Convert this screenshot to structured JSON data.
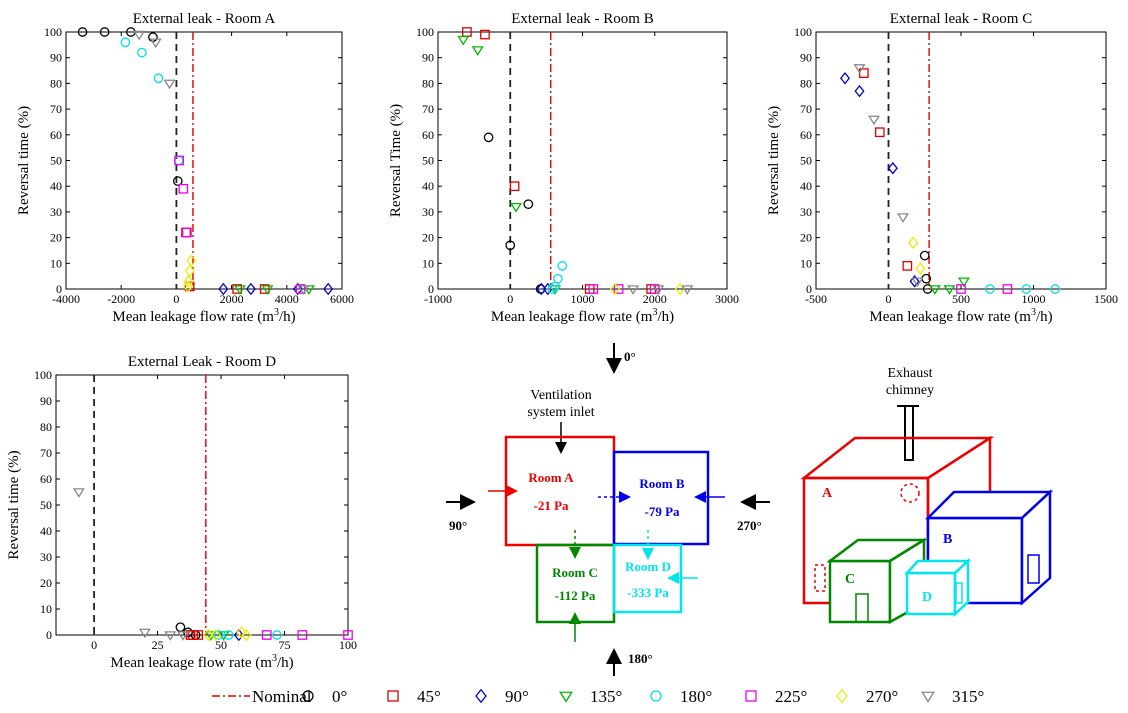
{
  "chart_data": [
    {
      "type": "scatter",
      "title": "External leak - Room A",
      "xlabel": "Mean leakage flow rate (m3/h)",
      "ylabel": "Reversal time (%)",
      "xlim": [
        -4000,
        6000
      ],
      "ylim": [
        0,
        100
      ],
      "xticks": [
        -4000,
        -2000,
        0,
        2000,
        4000,
        6000
      ],
      "yticks": [
        0,
        10,
        20,
        30,
        40,
        50,
        60,
        70,
        80,
        90,
        100
      ],
      "nominal_x": 600,
      "reference_x": 0,
      "series": [
        {
          "name": "0°",
          "points": [
            [
              -3400,
              100
            ],
            [
              -2600,
              100
            ],
            [
              -1650,
              100
            ],
            [
              -850,
              98
            ],
            [
              50,
              42
            ]
          ]
        },
        {
          "name": "45°",
          "points": [
            [
              350,
              22
            ],
            [
              480,
              1
            ],
            [
              2200,
              0
            ],
            [
              3200,
              0
            ]
          ]
        },
        {
          "name": "90°",
          "points": [
            [
              1700,
              0
            ],
            [
              2700,
              0
            ],
            [
              4400,
              0
            ],
            [
              5500,
              0
            ]
          ]
        },
        {
          "name": "135°",
          "points": [
            [
              2300,
              0
            ],
            [
              3300,
              0
            ],
            [
              4800,
              0
            ]
          ]
        },
        {
          "name": "180°",
          "points": [
            [
              -1850,
              96
            ],
            [
              -1250,
              92
            ],
            [
              -650,
              82
            ],
            [
              80,
              50
            ]
          ]
        },
        {
          "name": "225°",
          "points": [
            [
              100,
              50
            ],
            [
              250,
              39
            ],
            [
              380,
              22
            ],
            [
              4500,
              0
            ]
          ]
        },
        {
          "name": "270°",
          "points": [
            [
              540,
              11
            ],
            [
              480,
              7
            ],
            [
              440,
              3
            ],
            [
              420,
              1
            ]
          ]
        },
        {
          "name": "315°",
          "points": [
            [
              -1350,
              99
            ],
            [
              -750,
              96
            ],
            [
              -250,
              80
            ],
            [
              4600,
              0
            ]
          ]
        }
      ]
    },
    {
      "type": "scatter",
      "title": "External leak - Room B",
      "xlabel": "Mean leakage flow rate (m3/h)",
      "ylabel": "Reversal Time (%)",
      "xlim": [
        -1000,
        3000
      ],
      "ylim": [
        0,
        100
      ],
      "xticks": [
        -1000,
        0,
        1000,
        2000,
        3000
      ],
      "yticks": [
        0,
        10,
        20,
        30,
        40,
        50,
        60,
        70,
        80,
        90,
        100
      ],
      "nominal_x": 560,
      "reference_x": 0,
      "series": [
        {
          "name": "0°",
          "points": [
            [
              -300,
              59
            ],
            [
              250,
              33
            ],
            [
              0,
              17
            ],
            [
              420,
              0
            ]
          ]
        },
        {
          "name": "45°",
          "points": [
            [
              -600,
              100
            ],
            [
              -350,
              99
            ],
            [
              60,
              40
            ],
            [
              1100,
              0
            ],
            [
              1950,
              0
            ]
          ]
        },
        {
          "name": "90°",
          "points": [
            [
              430,
              0
            ],
            [
              520,
              0
            ]
          ]
        },
        {
          "name": "135°",
          "points": [
            [
              -650,
              97
            ],
            [
              -450,
              93
            ],
            [
              80,
              32
            ],
            [
              620,
              0
            ]
          ]
        },
        {
          "name": "180°",
          "points": [
            [
              720,
              9
            ],
            [
              660,
              4
            ],
            [
              620,
              1
            ],
            [
              580,
              0
            ]
          ]
        },
        {
          "name": "225°",
          "points": [
            [
              1150,
              0
            ],
            [
              1500,
              0
            ],
            [
              2000,
              0
            ]
          ]
        },
        {
          "name": "270°",
          "points": [
            [
              1450,
              0
            ],
            [
              2350,
              0
            ]
          ]
        },
        {
          "name": "315°",
          "points": [
            [
              1700,
              0
            ],
            [
              2050,
              0
            ],
            [
              2450,
              0
            ]
          ]
        }
      ]
    },
    {
      "type": "scatter",
      "title": "External leak - Room C",
      "xlabel": "Mean leakage flow rate (m3/h)",
      "ylabel": "Reversal time (%)",
      "xlim": [
        -500,
        1500
      ],
      "ylim": [
        0,
        100
      ],
      "xticks": [
        -500,
        0,
        500,
        1000,
        1500
      ],
      "yticks": [
        0,
        10,
        20,
        30,
        40,
        50,
        60,
        70,
        80,
        90,
        100
      ],
      "nominal_x": 280,
      "reference_x": 0,
      "series": [
        {
          "name": "0°",
          "points": [
            [
              250,
              13
            ],
            [
              260,
              4
            ],
            [
              270,
              0
            ]
          ]
        },
        {
          "name": "45°",
          "points": [
            [
              -170,
              84
            ],
            [
              -60,
              61
            ],
            [
              130,
              9
            ]
          ]
        },
        {
          "name": "90°",
          "points": [
            [
              -300,
              82
            ],
            [
              -200,
              77
            ],
            [
              30,
              47
            ],
            [
              180,
              3
            ]
          ]
        },
        {
          "name": "135°",
          "points": [
            [
              520,
              3
            ],
            [
              420,
              0
            ],
            [
              320,
              0
            ]
          ]
        },
        {
          "name": "180°",
          "points": [
            [
              700,
              0
            ],
            [
              950,
              0
            ],
            [
              1150,
              0
            ]
          ]
        },
        {
          "name": "225°",
          "points": [
            [
              500,
              0
            ],
            [
              820,
              0
            ]
          ]
        },
        {
          "name": "270°",
          "points": [
            [
              170,
              18
            ],
            [
              220,
              8
            ]
          ]
        },
        {
          "name": "315°",
          "points": [
            [
              -200,
              86
            ],
            [
              -100,
              66
            ],
            [
              100,
              28
            ],
            [
              200,
              3
            ]
          ]
        }
      ]
    },
    {
      "type": "scatter",
      "title": "External Leak - Room D",
      "xlabel": "Mean leakage flow rate (m3/h)",
      "ylabel": "Reversal time (%)",
      "xlim": [
        -15,
        100
      ],
      "ylim": [
        0,
        100
      ],
      "xticks": [
        0,
        25,
        50,
        75,
        100
      ],
      "yticks": [
        0,
        10,
        20,
        30,
        40,
        50,
        60,
        70,
        80,
        90,
        100
      ],
      "nominal_x": 44,
      "reference_x": 0,
      "series": [
        {
          "name": "0°",
          "points": [
            [
              34,
              3
            ],
            [
              37,
              1
            ],
            [
              40,
              0
            ]
          ]
        },
        {
          "name": "45°",
          "points": [
            [
              38,
              0
            ],
            [
              39,
              0
            ],
            [
              41,
              0
            ]
          ]
        },
        {
          "name": "90°",
          "points": [
            [
              57,
              0
            ]
          ]
        },
        {
          "name": "135°",
          "points": [
            [
              46,
              0
            ],
            [
              51,
              0
            ]
          ]
        },
        {
          "name": "180°",
          "points": [
            [
              49,
              0
            ],
            [
              53,
              0
            ],
            [
              72,
              0
            ]
          ]
        },
        {
          "name": "225°",
          "points": [
            [
              68,
              0
            ],
            [
              82,
              0
            ],
            [
              100,
              0
            ]
          ]
        },
        {
          "name": "270°",
          "points": [
            [
              45,
              0
            ],
            [
              48,
              0
            ],
            [
              58,
              1
            ],
            [
              60,
              0
            ]
          ]
        },
        {
          "name": "315°",
          "points": [
            [
              -6,
              55
            ],
            [
              20,
              1
            ],
            [
              30,
              0
            ],
            [
              35,
              0
            ]
          ]
        }
      ]
    }
  ],
  "legend": {
    "items": [
      {
        "label": "Nominal",
        "marker": "dashdot-line",
        "color": "#dd0000"
      },
      {
        "label": "0°",
        "marker": "circle",
        "color": "#000000"
      },
      {
        "label": "45°",
        "marker": "square",
        "color": "#dd0000"
      },
      {
        "label": "90°",
        "marker": "diamond",
        "color": "#0000cc"
      },
      {
        "label": "135°",
        "marker": "triangle-down",
        "color": "#00bb00"
      },
      {
        "label": "180°",
        "marker": "circle",
        "color": "#00e0ee"
      },
      {
        "label": "225°",
        "marker": "square",
        "color": "#ee00ee"
      },
      {
        "label": "270°",
        "marker": "diamond",
        "color": "#eeee00"
      },
      {
        "label": "315°",
        "marker": "triangle-down",
        "color": "#888888"
      }
    ]
  },
  "colors": {
    "nominal": "#dd0000",
    "room_a": "#ee0000",
    "room_b": "#0000ee",
    "room_c": "#008800",
    "room_d": "#00e5ee"
  },
  "diagram": {
    "wind_top": "0°",
    "wind_left": "90°",
    "wind_right": "270°",
    "wind_bottom": "180°",
    "inlet_label_1": "Ventilation",
    "inlet_label_2": "system inlet",
    "room_a_name": "Room A",
    "room_a_pressure": "-21 Pa",
    "room_b_name": "Room B",
    "room_b_pressure": "-79 Pa",
    "room_c_name": "Room C",
    "room_c_pressure": "-112 Pa",
    "room_d_name": "Room D",
    "room_d_pressure": "-333 Pa",
    "chimney_label_1": "Exhaust",
    "chimney_label_2": "chimney",
    "box_a": "A",
    "box_b": "B",
    "box_c": "C",
    "box_d": "D"
  }
}
